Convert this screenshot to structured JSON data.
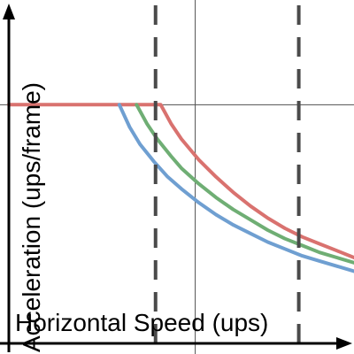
{
  "chart_data": {
    "type": "line",
    "title": "",
    "xlabel": "Horizontal Speed (ups)",
    "ylabel": "Acceleration (ups/frame)",
    "xlim": [
      0,
      1
    ],
    "ylim": [
      0,
      1
    ],
    "grid": false,
    "reference_lines": {
      "vertical_dashed": [
        0.425,
        0.84
      ],
      "vertical_solid": [
        0.54
      ],
      "horizontal_solid": [
        0.695
      ]
    },
    "series": [
      {
        "color": "#d9726f",
        "points": [
          [
            0,
            0.695
          ],
          [
            0.44,
            0.695
          ],
          [
            0.47,
            0.64
          ],
          [
            0.5,
            0.595
          ],
          [
            0.55,
            0.535
          ],
          [
            0.6,
            0.485
          ],
          [
            0.65,
            0.44
          ],
          [
            0.7,
            0.4
          ],
          [
            0.75,
            0.365
          ],
          [
            0.8,
            0.335
          ],
          [
            0.85,
            0.31
          ],
          [
            0.9,
            0.29
          ],
          [
            0.95,
            0.27
          ],
          [
            1.0,
            0.25
          ]
        ]
      },
      {
        "color": "#6fae74",
        "points": [
          [
            0.37,
            0.695
          ],
          [
            0.4,
            0.64
          ],
          [
            0.43,
            0.595
          ],
          [
            0.47,
            0.545
          ],
          [
            0.5,
            0.51
          ],
          [
            0.55,
            0.465
          ],
          [
            0.6,
            0.425
          ],
          [
            0.65,
            0.39
          ],
          [
            0.7,
            0.36
          ],
          [
            0.75,
            0.33
          ],
          [
            0.8,
            0.305
          ],
          [
            0.85,
            0.285
          ],
          [
            0.9,
            0.265
          ],
          [
            0.95,
            0.25
          ],
          [
            1.0,
            0.235
          ]
        ]
      },
      {
        "color": "#6f9fd1",
        "points": [
          [
            0.32,
            0.695
          ],
          [
            0.35,
            0.63
          ],
          [
            0.38,
            0.58
          ],
          [
            0.42,
            0.53
          ],
          [
            0.46,
            0.485
          ],
          [
            0.5,
            0.45
          ],
          [
            0.55,
            0.41
          ],
          [
            0.6,
            0.375
          ],
          [
            0.65,
            0.345
          ],
          [
            0.7,
            0.32
          ],
          [
            0.75,
            0.295
          ],
          [
            0.8,
            0.275
          ],
          [
            0.85,
            0.255
          ],
          [
            0.9,
            0.24
          ],
          [
            0.95,
            0.225
          ],
          [
            1.0,
            0.21
          ]
        ]
      }
    ]
  },
  "colors": {
    "axis": "#000000",
    "reference_line": "#4f4f4f",
    "dashed_line": "#4a4a4a"
  }
}
